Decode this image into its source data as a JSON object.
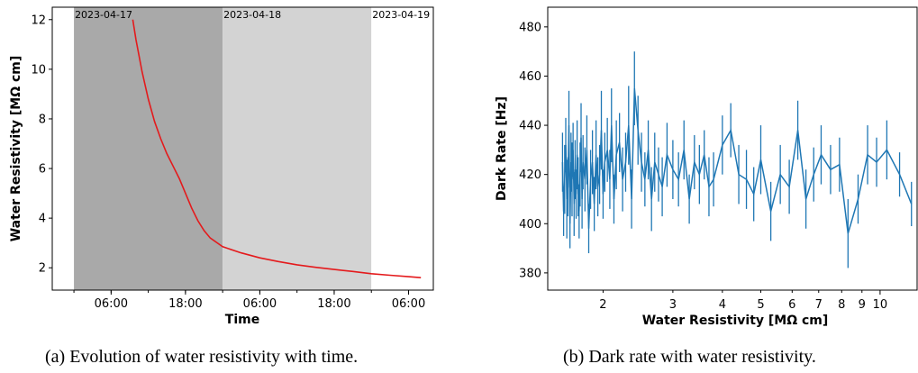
{
  "chart_data": [
    {
      "type": "line",
      "caption": "(a) Evolution of water resistivity with time.",
      "xlabel": "Time",
      "ylabel": "Water Resistivity [MΩ cm]",
      "x_tick_labels": [
        "06:00",
        "18:00",
        "06:00",
        "18:00",
        "06:00"
      ],
      "x_tick_times": [
        "2023-04-17 06:00",
        "2023-04-17 18:00",
        "2023-04-18 06:00",
        "2023-04-18 18:00",
        "2023-04-19 06:00"
      ],
      "x_range": [
        "2023-04-16 20:30",
        "2023-04-19 10:00"
      ],
      "ylim": [
        1.1,
        12.5
      ],
      "y_ticks": [
        2,
        4,
        6,
        8,
        10,
        12
      ],
      "day_bands": [
        {
          "label": "2023-04-17",
          "start": "2023-04-17 00:00",
          "end": "2023-04-18 00:00",
          "color": "#a9a9a9"
        },
        {
          "label": "2023-04-18",
          "start": "2023-04-18 00:00",
          "end": "2023-04-19 00:00",
          "color": "#d3d3d3"
        },
        {
          "label": "2023-04-19",
          "start": "2023-04-19 00:00",
          "end": "",
          "color": "#ffffff"
        }
      ],
      "series": [
        {
          "color": "#e41a1c",
          "points": [
            [
              "2023-04-17 09:30",
              12.0
            ],
            [
              "2023-04-17 10:00",
              11.2
            ],
            [
              "2023-04-17 11:00",
              9.9
            ],
            [
              "2023-04-17 12:00",
              8.8
            ],
            [
              "2023-04-17 13:00",
              7.9
            ],
            [
              "2023-04-17 14:00",
              7.2
            ],
            [
              "2023-04-17 15:00",
              6.6
            ],
            [
              "2023-04-17 16:00",
              6.1
            ],
            [
              "2023-04-17 17:00",
              5.6
            ],
            [
              "2023-04-17 18:00",
              5.0
            ],
            [
              "2023-04-17 19:00",
              4.4
            ],
            [
              "2023-04-17 20:00",
              3.9
            ],
            [
              "2023-04-17 21:00",
              3.5
            ],
            [
              "2023-04-17 22:00",
              3.2
            ],
            [
              "2023-04-18 00:00",
              2.85
            ],
            [
              "2023-04-18 03:00",
              2.6
            ],
            [
              "2023-04-18 06:00",
              2.4
            ],
            [
              "2023-04-18 09:00",
              2.25
            ],
            [
              "2023-04-18 12:00",
              2.12
            ],
            [
              "2023-04-18 15:00",
              2.02
            ],
            [
              "2023-04-18 18:00",
              1.93
            ],
            [
              "2023-04-18 21:00",
              1.85
            ],
            [
              "2023-04-19 00:00",
              1.76
            ],
            [
              "2023-04-19 03:00",
              1.7
            ],
            [
              "2023-04-19 06:00",
              1.64
            ],
            [
              "2023-04-19 08:00",
              1.6
            ]
          ]
        }
      ]
    },
    {
      "type": "line",
      "caption": "(b) Dark rate with water resistivity.",
      "xlabel": "Water Resistivity [MΩ cm]",
      "ylabel": "Dark Rate [Hz]",
      "x_scale": "log",
      "xlim": [
        1.45,
        12.4
      ],
      "ylim": [
        373,
        488
      ],
      "x_ticks": [
        2,
        3,
        4,
        5,
        6,
        7,
        8,
        9,
        10
      ],
      "y_ticks": [
        380,
        400,
        420,
        440,
        460,
        480
      ],
      "series": [
        {
          "color": "#1f77b4",
          "x": [
            1.58,
            1.59,
            1.6,
            1.61,
            1.62,
            1.63,
            1.64,
            1.65,
            1.66,
            1.67,
            1.68,
            1.69,
            1.7,
            1.71,
            1.72,
            1.73,
            1.74,
            1.75,
            1.76,
            1.77,
            1.78,
            1.8,
            1.82,
            1.84,
            1.86,
            1.88,
            1.9,
            1.92,
            1.94,
            1.96,
            1.98,
            2.0,
            2.02,
            2.05,
            2.08,
            2.1,
            2.13,
            2.16,
            2.2,
            2.24,
            2.28,
            2.32,
            2.36,
            2.4,
            2.45,
            2.5,
            2.55,
            2.6,
            2.65,
            2.7,
            2.76,
            2.82,
            2.9,
            3.0,
            3.1,
            3.2,
            3.3,
            3.4,
            3.5,
            3.6,
            3.7,
            3.8,
            4.0,
            4.2,
            4.4,
            4.6,
            4.8,
            5.0,
            5.3,
            5.6,
            5.9,
            6.2,
            6.5,
            6.8,
            7.1,
            7.5,
            7.9,
            8.3,
            8.8,
            9.3,
            9.8,
            10.4,
            11.2,
            12.0
          ],
          "y": [
            425,
            405,
            418,
            432,
            410,
            415,
            440,
            400,
            425,
            418,
            430,
            408,
            422,
            412,
            428,
            415,
            405,
            420,
            435,
            410,
            425,
            418,
            430,
            398,
            418,
            425,
            408,
            428,
            415,
            420,
            438,
            412,
            425,
            430,
            418,
            440,
            410,
            428,
            433,
            418,
            425,
            440,
            410,
            455,
            438,
            425,
            418,
            430,
            410,
            425,
            420,
            415,
            428,
            422,
            418,
            430,
            410,
            425,
            420,
            428,
            415,
            418,
            432,
            438,
            420,
            418,
            412,
            426,
            405,
            420,
            415,
            438,
            410,
            420,
            428,
            422,
            424,
            396,
            410,
            428,
            425,
            430,
            420,
            408
          ],
          "err": [
            12,
            10,
            14,
            11,
            16,
            12,
            14,
            10,
            12,
            15,
            11,
            13,
            12,
            10,
            14,
            12,
            11,
            13,
            14,
            12,
            11,
            13,
            14,
            10,
            12,
            13,
            11,
            14,
            12,
            12,
            16,
            10,
            12,
            13,
            12,
            15,
            10,
            14,
            12,
            13,
            12,
            16,
            12,
            15,
            14,
            12,
            11,
            12,
            13,
            12,
            11,
            12,
            13,
            12,
            11,
            12,
            10,
            11,
            12,
            10,
            12,
            11,
            12,
            11,
            12,
            12,
            11,
            14,
            12,
            12,
            11,
            12,
            12,
            11,
            12,
            10,
            11,
            14,
            10,
            12,
            10,
            12,
            9,
            9
          ]
        }
      ]
    }
  ]
}
